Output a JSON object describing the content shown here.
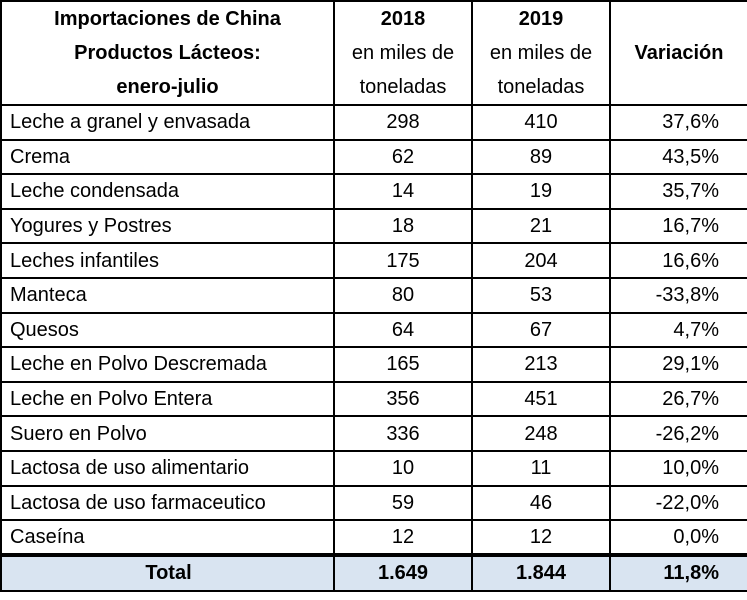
{
  "header": {
    "title_lines": [
      "Importaciones de China",
      "Productos Lácteos:",
      "enero-julio"
    ],
    "col_2018": [
      "2018",
      "en miles de",
      "toneladas"
    ],
    "col_2019": [
      "2019",
      "en miles de",
      "toneladas"
    ],
    "col_variation": "Variación"
  },
  "rows": [
    {
      "product": "Leche a granel y envasada",
      "y2018": "298",
      "y2019": "410",
      "variation": "37,6%"
    },
    {
      "product": "Crema",
      "y2018": "62",
      "y2019": "89",
      "variation": "43,5%"
    },
    {
      "product": "Leche condensada",
      "y2018": "14",
      "y2019": "19",
      "variation": "35,7%"
    },
    {
      "product": "Yogures y Postres",
      "y2018": "18",
      "y2019": "21",
      "variation": "16,7%"
    },
    {
      "product": "Leches infantiles",
      "y2018": "175",
      "y2019": "204",
      "variation": "16,6%"
    },
    {
      "product": "Manteca",
      "y2018": "80",
      "y2019": "53",
      "variation": "-33,8%"
    },
    {
      "product": "Quesos",
      "y2018": "64",
      "y2019": "67",
      "variation": "4,7%"
    },
    {
      "product": "Leche en Polvo Descremada",
      "y2018": "165",
      "y2019": "213",
      "variation": "29,1%"
    },
    {
      "product": "Leche en Polvo Entera",
      "y2018": "356",
      "y2019": "451",
      "variation": "26,7%"
    },
    {
      "product": "Suero en Polvo",
      "y2018": "336",
      "y2019": "248",
      "variation": "-26,2%"
    },
    {
      "product": "Lactosa de uso alimentario",
      "y2018": "10",
      "y2019": "11",
      "variation": "10,0%"
    },
    {
      "product": "Lactosa de uso farmaceutico",
      "y2018": "59",
      "y2019": "46",
      "variation": "-22,0%"
    },
    {
      "product": "Caseína",
      "y2018": "12",
      "y2019": "12",
      "variation": "0,0%"
    }
  ],
  "total": {
    "label": "Total",
    "y2018": "1.649",
    "y2019": "1.844",
    "variation": "11,8%"
  },
  "colors": {
    "total_row_background": "#d9e4f1",
    "border": "#000000"
  }
}
